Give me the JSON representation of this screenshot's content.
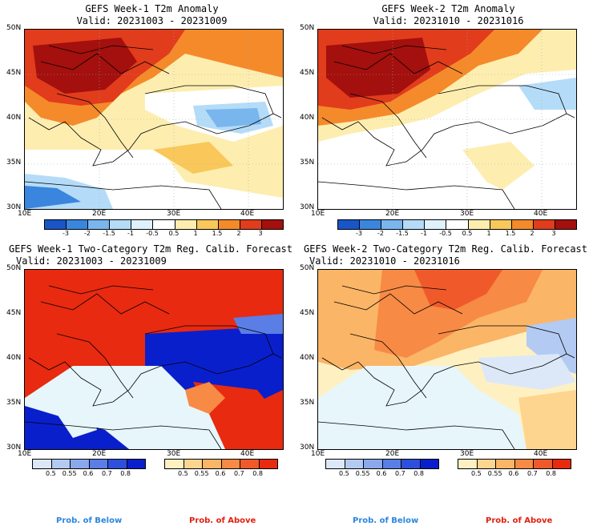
{
  "panels": [
    {
      "title": "GEFS Week-1 T2m Anomaly",
      "valid": "Valid: 20231003 - 20231009"
    },
    {
      "title": "GEFS Week-2 T2m Anomaly",
      "valid": "Valid: 20231010 - 20231016"
    },
    {
      "title": "GEFS Week-1 Two-Category T2m Reg. Calib. Forecast",
      "valid": "Valid: 20231003 - 20231009"
    },
    {
      "title": "GEFS Week-2 Two-Category T2m Reg. Calib. Forecast",
      "valid": "Valid: 20231010 - 20231016"
    }
  ],
  "axes": {
    "lat_labels": [
      "50N",
      "45N",
      "40N",
      "35N",
      "30N"
    ],
    "lon_labels": [
      "10E",
      "20E",
      "30E",
      "40E"
    ]
  },
  "anomaly_colorbar": {
    "labels": [
      "-3",
      "-2",
      "-1.5",
      "-1",
      "-0.5",
      "0.5",
      "1",
      "1.5",
      "2",
      "3"
    ],
    "colors": [
      "#1a55c8",
      "#3a86de",
      "#79b6ee",
      "#b4dcf8",
      "#dff1fb",
      "#ffffff",
      "#fdeeb0",
      "#f9c75a",
      "#f58a2a",
      "#e13c1c",
      "#a3100e"
    ]
  },
  "prob_below_colorbar": {
    "labels": [
      "0.5",
      "0.55",
      "0.6",
      "0.7",
      "0.8"
    ],
    "colors": [
      "#dce8f8",
      "#b3caf2",
      "#8aa8ec",
      "#5a7ee6",
      "#2d4fdc",
      "#0a1fcc"
    ]
  },
  "prob_above_colorbar": {
    "labels": [
      "0.5",
      "0.55",
      "0.6",
      "0.7",
      "0.8"
    ],
    "colors": [
      "#fff0c2",
      "#fdd58e",
      "#fbb566",
      "#f78a45",
      "#f05a2a",
      "#e82a10"
    ]
  },
  "footer": {
    "below_label": "Prob. of Below",
    "above_label": "Prob. of Above",
    "below_color": "#2a86e0",
    "above_color": "#e02010"
  }
}
